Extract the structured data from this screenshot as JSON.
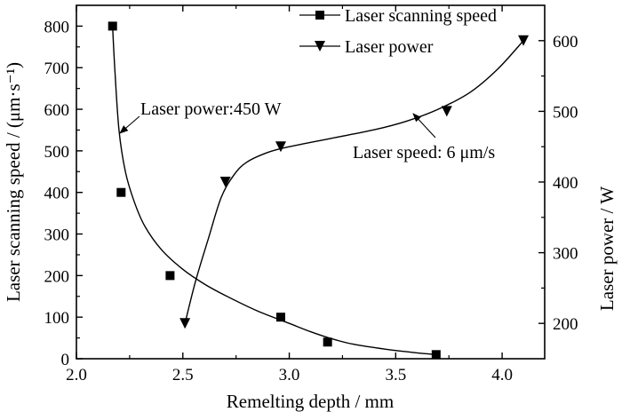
{
  "chart_data": {
    "type": "scatter",
    "xlabel": "Remelting depth / mm",
    "ylabel_left": "Laser scanning speed  / (μm·s⁻¹)",
    "ylabel_right": "Laser power / W",
    "xlim": [
      2.0,
      4.2
    ],
    "ylim_left": [
      0,
      850
    ],
    "ylim_right": [
      150,
      650
    ],
    "xticks": [
      2.0,
      2.5,
      3.0,
      3.5,
      4.0
    ],
    "xtick_labels": [
      "2.0",
      "2.5",
      "3.0",
      "3.5",
      "4.0"
    ],
    "yticks_left": [
      0,
      100,
      200,
      300,
      400,
      500,
      600,
      700,
      800
    ],
    "ytick_labels_left": [
      "0",
      "100",
      "200",
      "300",
      "400",
      "500",
      "600",
      "700",
      "800"
    ],
    "yticks_right": [
      200,
      300,
      400,
      500,
      600
    ],
    "ytick_labels_right": [
      "200",
      "300",
      "400",
      "500",
      "600"
    ],
    "grid": false,
    "legend_position": "top-right",
    "series": [
      {
        "name": "Laser scanning speed",
        "axis": "left",
        "marker": "square",
        "points": [
          {
            "x": 2.17,
            "y": 800
          },
          {
            "x": 2.21,
            "y": 400
          },
          {
            "x": 2.44,
            "y": 200
          },
          {
            "x": 2.96,
            "y": 100
          },
          {
            "x": 3.18,
            "y": 40
          },
          {
            "x": 3.69,
            "y": 10
          }
        ],
        "fit_curve": [
          {
            "x": 2.17,
            "y": 800
          },
          {
            "x": 2.18,
            "y": 700
          },
          {
            "x": 2.2,
            "y": 550
          },
          {
            "x": 2.23,
            "y": 450
          },
          {
            "x": 2.27,
            "y": 380
          },
          {
            "x": 2.32,
            "y": 320
          },
          {
            "x": 2.4,
            "y": 262
          },
          {
            "x": 2.5,
            "y": 215
          },
          {
            "x": 2.6,
            "y": 180
          },
          {
            "x": 2.7,
            "y": 152
          },
          {
            "x": 2.85,
            "y": 115
          },
          {
            "x": 3.0,
            "y": 85
          },
          {
            "x": 3.1,
            "y": 65
          },
          {
            "x": 3.2,
            "y": 48
          },
          {
            "x": 3.3,
            "y": 35
          },
          {
            "x": 3.45,
            "y": 23
          },
          {
            "x": 3.6,
            "y": 14
          },
          {
            "x": 3.69,
            "y": 10
          }
        ]
      },
      {
        "name": "Laser power",
        "axis": "right",
        "marker": "triangle-down",
        "points": [
          {
            "x": 2.51,
            "y": 200
          },
          {
            "x": 2.7,
            "y": 400
          },
          {
            "x": 2.96,
            "y": 450
          },
          {
            "x": 3.74,
            "y": 500
          },
          {
            "x": 4.1,
            "y": 600
          }
        ],
        "fit_curve": [
          {
            "x": 2.51,
            "y": 200
          },
          {
            "x": 2.56,
            "y": 260
          },
          {
            "x": 2.62,
            "y": 320
          },
          {
            "x": 2.68,
            "y": 378
          },
          {
            "x": 2.74,
            "y": 410
          },
          {
            "x": 2.8,
            "y": 428
          },
          {
            "x": 2.9,
            "y": 442
          },
          {
            "x": 3.0,
            "y": 450
          },
          {
            "x": 3.2,
            "y": 462
          },
          {
            "x": 3.4,
            "y": 474
          },
          {
            "x": 3.55,
            "y": 486
          },
          {
            "x": 3.7,
            "y": 503
          },
          {
            "x": 3.85,
            "y": 527
          },
          {
            "x": 3.98,
            "y": 560
          },
          {
            "x": 4.1,
            "y": 600
          }
        ]
      }
    ],
    "annotations": [
      {
        "text": "Laser power:450 W",
        "x": 2.56,
        "y_left": 600,
        "arrow_to_x": 2.21,
        "arrow_to_y_left": 540
      },
      {
        "text": "Laser speed: 6 μm/s",
        "x": 3.58,
        "y_left": 505,
        "arrow_to_x": 3.41,
        "arrow_to_y_left": 586
      }
    ]
  }
}
